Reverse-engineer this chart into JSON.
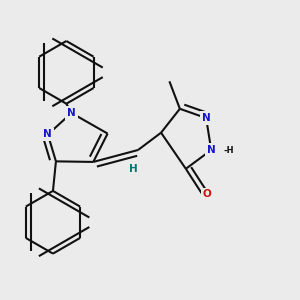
{
  "bg": "#ebebeb",
  "bc": "#111111",
  "nc": "#1515cc",
  "oc": "#cc1111",
  "hc": "#007777",
  "lw": 1.5,
  "dbo": 0.018,
  "fs": 7.5,
  "xlim": [
    0,
    1
  ],
  "ylim": [
    0,
    1
  ]
}
